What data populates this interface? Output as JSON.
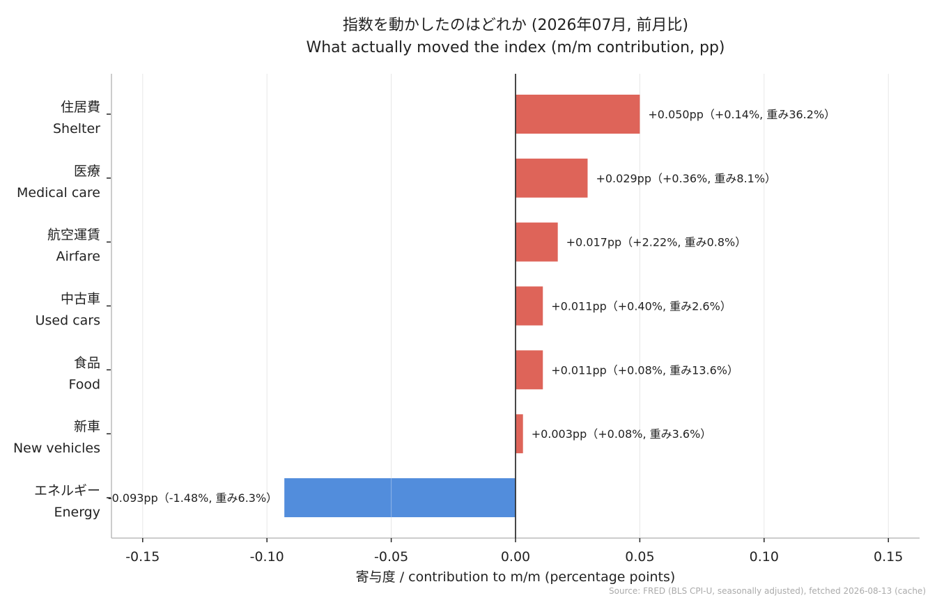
{
  "chart_data": {
    "type": "bar",
    "orientation": "horizontal",
    "title": "指数を動かしたのはどれか (2026年07月, 前月比)",
    "subtitle": "What actually moved the index (m/m contribution, pp)",
    "xlabel": "寄与度 / contribution to m/m (percentage points)",
    "xlim": [
      -0.163,
      0.163
    ],
    "xticks": [
      "-0.15",
      "-0.10",
      "-0.05",
      "0.00",
      "0.05",
      "0.10",
      "0.15"
    ],
    "xtick_values": [
      -0.15,
      -0.1,
      -0.05,
      0.0,
      0.05,
      0.1,
      0.15
    ],
    "grid": "vertical",
    "categories": [
      {
        "jp": "住居費",
        "en": "Shelter"
      },
      {
        "jp": "医療",
        "en": "Medical care"
      },
      {
        "jp": "航空運賃",
        "en": "Airfare"
      },
      {
        "jp": "中古車",
        "en": "Used cars"
      },
      {
        "jp": "食品",
        "en": "Food"
      },
      {
        "jp": "新車",
        "en": "New vehicles"
      },
      {
        "jp": "エネルギー",
        "en": "Energy"
      }
    ],
    "values": [
      0.05,
      0.029,
      0.017,
      0.011,
      0.011,
      0.003,
      -0.093
    ],
    "data_labels": [
      "+0.050pp（+0.14%, 重み36.2%）",
      "+0.029pp（+0.36%, 重み8.1%）",
      "+0.017pp（+2.22%, 重み0.8%）",
      "+0.011pp（+0.40%, 重み2.6%）",
      "+0.011pp（+0.08%, 重み13.6%）",
      "+0.003pp（+0.08%, 重み3.6%）",
      "-0.093pp（-1.48%, 重み6.3%）"
    ],
    "colors": {
      "positive": "#de6459",
      "negative": "#528ddc",
      "zero_line": "#333333",
      "grid": "#e6e6e6",
      "axis": "#bbbbbb"
    }
  },
  "source": "Source: FRED (BLS CPI-U, seasonally adjusted), fetched 2026-08-13 (cache)"
}
